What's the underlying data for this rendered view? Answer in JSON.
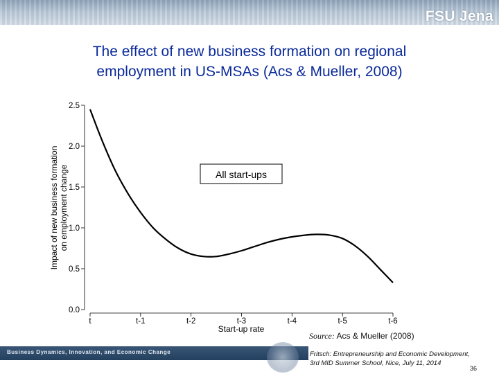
{
  "header": {
    "brand": "FSU Jena"
  },
  "slide": {
    "title_line1": "The effect of new business formation on regional",
    "title_line2": "employment in US-MSAs (Acs & Mueller, 2008)"
  },
  "chart_data": {
    "type": "line",
    "categories": [
      "t",
      "t-1",
      "t-2",
      "t-3",
      "t-4",
      "t-5",
      "t-6"
    ],
    "x": [
      0,
      0.25,
      0.5,
      0.75,
      1,
      1.25,
      1.5,
      1.75,
      2,
      2.25,
      2.5,
      2.75,
      3,
      3.25,
      3.5,
      3.75,
      4,
      4.25,
      4.5,
      4.75,
      5,
      5.25,
      5.5,
      5.75,
      6
    ],
    "series": [
      {
        "values": [
          2.45,
          2.05,
          1.7,
          1.42,
          1.19,
          1.0,
          0.86,
          0.75,
          0.68,
          0.65,
          0.65,
          0.68,
          0.72,
          0.77,
          0.82,
          0.86,
          0.89,
          0.91,
          0.92,
          0.91,
          0.87,
          0.78,
          0.65,
          0.49,
          0.33
        ]
      }
    ],
    "xlabel": "Start-up rate",
    "ylabel_line1": "Impact of new business formation",
    "ylabel_line2": "on employment change",
    "yticks": [
      "0.0",
      "0.5",
      "1.0",
      "1.5",
      "2.0",
      "2.5"
    ],
    "ylim": [
      0,
      2.5
    ],
    "annotation": "All start-ups",
    "grid": false,
    "color": "#000000"
  },
  "source": {
    "label": "Source:",
    "text": "Acs & Mueller (2008)"
  },
  "bottom_bar": {
    "text": "Business Dynamics, Innovation, and Economic Change"
  },
  "footer": {
    "line1": "Fritsch: Entrepreneurship and Economic Development,",
    "line2": "3rd MID Summer School, Nice, July 11, 2014",
    "page": "36"
  }
}
